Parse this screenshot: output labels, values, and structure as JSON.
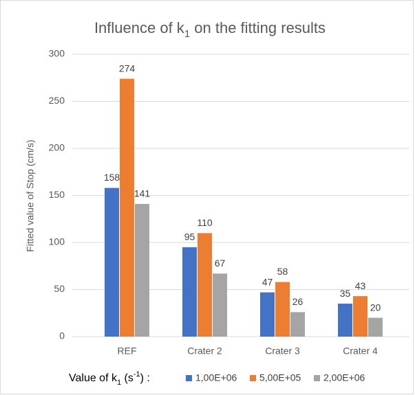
{
  "chart_data": {
    "type": "bar",
    "title": [
      "Influence of k",
      "1",
      " on the fitting results"
    ],
    "y_label": "Fitted value of Stop (cm/s)",
    "legend_title": [
      "Value of k",
      "1",
      " (s",
      "-1",
      ") :"
    ],
    "categories": [
      "REF",
      "Crater 2",
      "Crater 3",
      "Crater 4"
    ],
    "series": [
      {
        "name": "1,00E+06",
        "color": "#4472c4",
        "values": [
          158,
          95,
          47,
          35
        ]
      },
      {
        "name": "5,00E+05",
        "color": "#ed7d31",
        "values": [
          274,
          110,
          58,
          43
        ]
      },
      {
        "name": "2,00E+06",
        "color": "#a5a5a5",
        "values": [
          141,
          67,
          26,
          20
        ]
      }
    ],
    "ylim": [
      0,
      300
    ],
    "yticks": [
      0,
      50,
      100,
      150,
      200,
      250,
      300
    ],
    "grid": true
  }
}
